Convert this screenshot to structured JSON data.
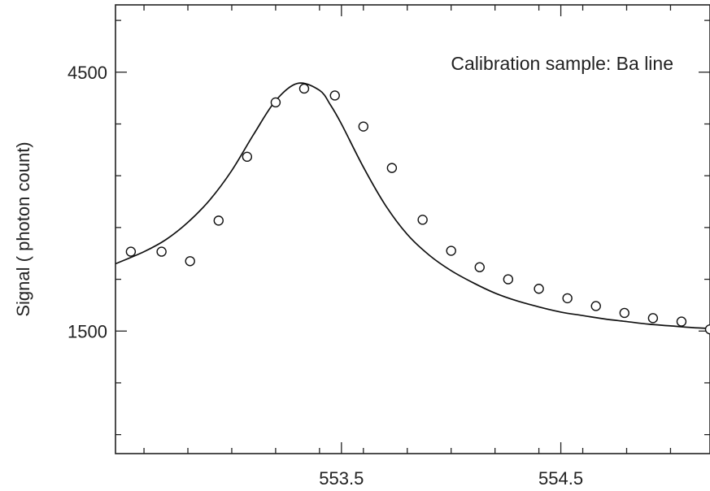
{
  "chart_data": {
    "type": "scatter",
    "annotation": "Calibration sample: Ba line",
    "xlabel": "",
    "ylabel": "Signal ( photon count)",
    "xlim": [
      552.47,
      555.18
    ],
    "ylim": [
      80,
      5280
    ],
    "x_ticks": [
      {
        "value": 553.5,
        "label": "553.5"
      },
      {
        "value": 554.5,
        "label": "554.5"
      }
    ],
    "x_minor_ticks": [
      552.6,
      552.8,
      553.0,
      553.2,
      553.4,
      553.6,
      553.8,
      554.0,
      554.2,
      554.4,
      554.6,
      554.8,
      555.0
    ],
    "y_ticks": [
      {
        "value": 1500,
        "label": "1500"
      },
      {
        "value": 4500,
        "label": "4500"
      }
    ],
    "y_minor_ticks": [
      300,
      900,
      2100,
      2700,
      3300,
      3900,
      5100
    ],
    "grid": false,
    "series": [
      {
        "kind": "points",
        "marker": "open-circle",
        "x": [
          552.54,
          552.68,
          552.81,
          552.94,
          553.07,
          553.2,
          553.33,
          553.47,
          553.6,
          553.73,
          553.87,
          554.0,
          554.13,
          554.26,
          554.4,
          554.53,
          554.66,
          554.79,
          554.92,
          555.05,
          555.18
        ],
        "y": [
          2420,
          2420,
          2310,
          2780,
          3520,
          4150,
          4310,
          4230,
          3870,
          3390,
          2790,
          2430,
          2240,
          2100,
          1990,
          1880,
          1790,
          1710,
          1650,
          1610,
          1520
        ]
      },
      {
        "kind": "line",
        "x": [
          552.47,
          552.6,
          552.7,
          552.8,
          552.9,
          553.0,
          553.1,
          553.2,
          553.3,
          553.4,
          553.45,
          553.5,
          553.6,
          553.7,
          553.8,
          553.9,
          554.0,
          554.1,
          554.2,
          554.3,
          554.4,
          554.5,
          554.6,
          554.7,
          554.8,
          554.9,
          555.0,
          555.1,
          555.18
        ],
        "y": [
          2280,
          2420,
          2560,
          2760,
          3020,
          3360,
          3780,
          4170,
          4370,
          4290,
          4120,
          3900,
          3400,
          2960,
          2620,
          2380,
          2200,
          2060,
          1940,
          1850,
          1780,
          1720,
          1680,
          1640,
          1610,
          1580,
          1560,
          1540,
          1530
        ]
      }
    ]
  }
}
